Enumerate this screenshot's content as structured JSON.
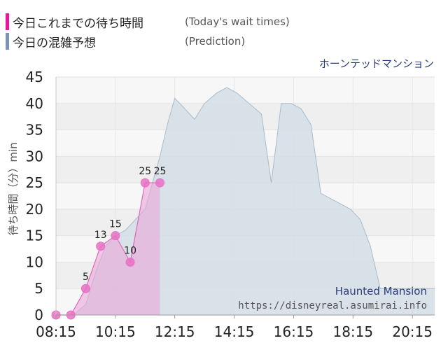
{
  "legend": {
    "actual": {
      "title": "今日これまでの待ち時間",
      "sub": "(Today's wait times)",
      "color": "#e8179b"
    },
    "prediction": {
      "title": "今日の混雑予想",
      "sub": "(Prediction)",
      "color": "#7b94b5"
    }
  },
  "attraction_name": "ホーンテッドマンション",
  "watermark": {
    "name": "Haunted Mansion",
    "url": "https://disneyreal.asumirai.info"
  },
  "chart_data": {
    "type": "area",
    "ylabel": "待ち時間（分）min",
    "ylim": [
      0,
      45
    ],
    "yticks": [
      0,
      5,
      10,
      15,
      20,
      25,
      30,
      35,
      40,
      45
    ],
    "xlim": [
      "08:15",
      "21:00"
    ],
    "xticks": [
      "08:15",
      "10:15",
      "12:15",
      "14:15",
      "16:15",
      "18:15",
      "20:15"
    ],
    "grid": true,
    "series": [
      {
        "name": "今日の混雑予想",
        "x": [
          "08:15",
          "08:50",
          "09:15",
          "09:35",
          "09:55",
          "10:15",
          "10:35",
          "10:55",
          "11:15",
          "11:30",
          "11:45",
          "12:00",
          "12:15",
          "12:35",
          "12:55",
          "13:15",
          "13:40",
          "14:00",
          "14:20",
          "14:45",
          "15:10",
          "15:30",
          "15:50",
          "16:10",
          "16:30",
          "16:50",
          "17:10",
          "17:30",
          "17:50",
          "18:10",
          "18:30",
          "18:50",
          "19:10",
          "19:30",
          "20:00",
          "20:30",
          "21:00"
        ],
        "values": [
          0,
          0,
          2,
          8,
          13,
          15,
          16,
          18,
          20,
          25,
          30,
          36,
          41,
          39,
          37,
          40,
          42,
          43,
          42,
          40,
          38,
          25,
          40,
          40,
          39,
          36,
          23,
          22,
          21,
          20,
          18,
          13,
          5,
          5,
          5,
          5,
          5
        ]
      },
      {
        "name": "今日これまでの待ち時間",
        "x": [
          "08:15",
          "08:45",
          "09:15",
          "09:45",
          "10:15",
          "10:45",
          "11:15",
          "11:45"
        ],
        "values": [
          0,
          0,
          5,
          13,
          15,
          10,
          25,
          25
        ],
        "labels": [
          "",
          "",
          "5",
          "13",
          "15",
          "10",
          "25",
          "25"
        ]
      }
    ]
  }
}
